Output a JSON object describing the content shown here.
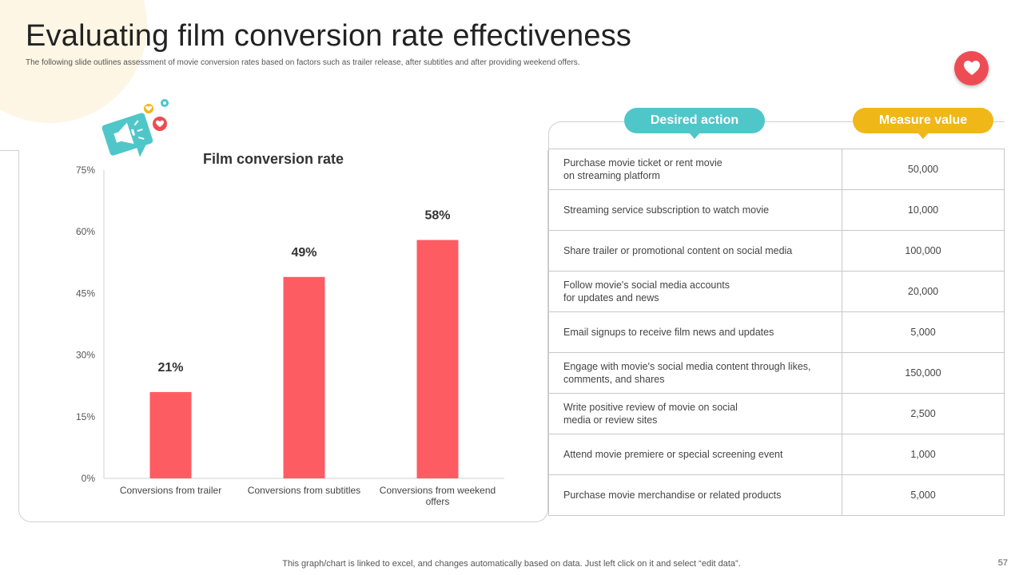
{
  "slide": {
    "title": "Evaluating film conversion rate effectiveness",
    "subtitle": "The following slide outlines assessment of movie conversion rates based on factors such as trailer release, after subtitles and after providing weekend offers.",
    "footer_note": "This graph/chart is linked to excel,  and changes automatically based on data. Just left click on it and select “edit data”.",
    "page_number": "57"
  },
  "colors": {
    "bar": "#fd5c63",
    "teal": "#4fc7c9",
    "gold": "#efb718",
    "red": "#ee4c55"
  },
  "icons": {
    "megaphone": "megaphone-icon",
    "heart": "heart-icon"
  },
  "chart_data": {
    "type": "bar",
    "title": "Film conversion rate",
    "categories": [
      "Conversions from trailer",
      "Conversions from subtitles",
      "Conversions from weekend offers"
    ],
    "category_lines": [
      [
        "Conversions from trailer"
      ],
      [
        "Conversions from subtitles"
      ],
      [
        "Conversions from weekend",
        "offers"
      ]
    ],
    "values": [
      21,
      49,
      58
    ],
    "data_labels": [
      "21%",
      "49%",
      "58%"
    ],
    "ylim": [
      0,
      75
    ],
    "yticks": [
      0,
      15,
      30,
      45,
      60,
      75
    ],
    "ytick_labels": [
      "0%",
      "15%",
      "30%",
      "45%",
      "60%",
      "75%"
    ],
    "xlabel": "",
    "ylabel": "",
    "grid": false
  },
  "table": {
    "headers": [
      "Desired action",
      "Measure value"
    ],
    "rows": [
      {
        "action": "Purchase movie ticket or rent movie\non streaming platform",
        "value": "50,000"
      },
      {
        "action": "Streaming service subscription to watch movie",
        "value": "10,000"
      },
      {
        "action": "Share trailer or promotional content on social media",
        "value": "100,000"
      },
      {
        "action": "Follow movie's social media accounts\nfor updates and news",
        "value": "20,000"
      },
      {
        "action": "Email signups to receive film news and updates",
        "value": "5,000"
      },
      {
        "action": "Engage with movie's social media content through likes,\ncomments, and shares",
        "value": "150,000"
      },
      {
        "action": "Write positive review  of movie on social\nmedia or review sites",
        "value": "2,500"
      },
      {
        "action": "Attend movie premiere or special screening event",
        "value": "1,000"
      },
      {
        "action": "Purchase movie merchandise or related products",
        "value": "5,000"
      }
    ]
  }
}
